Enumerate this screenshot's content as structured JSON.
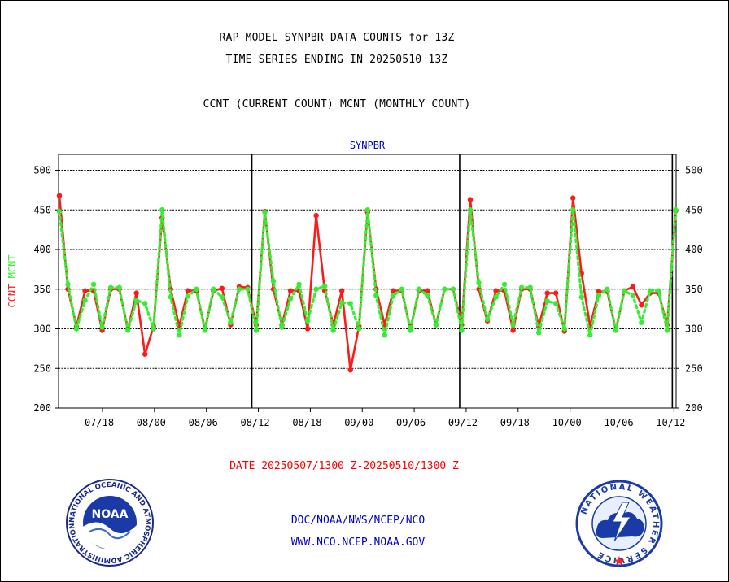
{
  "header": {
    "line1": "RAP MODEL SYNPBR DATA COUNTS for 13Z",
    "line2": "TIME SERIES ENDING IN 20250510 13Z",
    "line3": "CCNT (CURRENT COUNT) MCNT (MONTHLY COUNT)"
  },
  "footer": {
    "date_range": "DATE 20250507/1300 Z-20250510/1300 Z",
    "link1": "DOC/NOAA/NWS/NCEP/NCO",
    "link2": "WWW.NCO.NCEP.NOAA.GOV"
  },
  "logos": {
    "noaa_text": "NOAA",
    "noaa_ring": "NATIONAL OCEANIC AND ATMOSPHERIC ADMINISTRATION · U.S. DEPARTMENT OF COMMERCE ·",
    "nws_ring": "NATIONAL WEATHER SERVICE"
  },
  "colors": {
    "ccnt": "#ff1a1a",
    "mcnt": "#33ee33",
    "axis_label_blue": "#0000cc",
    "link_blue": "#0000cc"
  },
  "chart_data": {
    "type": "line",
    "title": "SYNPBR",
    "ylabel_parts": [
      {
        "text": "CCNT",
        "color": "#ff1a1a"
      },
      {
        "text": "MCNT",
        "color": "#33ee33"
      }
    ],
    "ylim": [
      200,
      520
    ],
    "yticks": [
      200,
      250,
      300,
      350,
      400,
      450,
      500
    ],
    "xtick_labels": [
      "07/18",
      "08/00",
      "08/06",
      "08/12",
      "08/18",
      "09/00",
      "09/06",
      "09/12",
      "09/18",
      "10/00",
      "10/06",
      "10/12"
    ],
    "x_start_hours_before_0718": 5,
    "x_end_hours_after_1012": 0.5,
    "day_separators": [
      "08/12",
      "09/12",
      "10/12"
    ],
    "grid": true,
    "series": [
      {
        "name": "CCNT",
        "values": [
          468,
          350,
          303,
          348,
          348,
          298,
          350,
          350,
          300,
          345,
          268,
          303,
          440,
          350,
          303,
          348,
          348,
          300,
          348,
          351,
          305,
          353,
          352,
          305,
          448,
          350,
          305,
          348,
          348,
          300,
          443,
          348,
          305,
          348,
          248,
          303,
          447,
          350,
          305,
          348,
          348,
          300,
          348,
          348,
          305,
          350,
          350,
          305,
          463,
          350,
          310,
          348,
          348,
          298,
          350,
          350,
          303,
          345,
          345,
          297,
          465,
          370,
          303,
          347,
          347,
          298,
          348,
          353,
          330,
          345,
          345,
          305,
          449
        ]
      },
      {
        "name": "MCNT",
        "values": [
          448,
          356,
          300,
          336,
          356,
          302,
          352,
          352,
          298,
          336,
          332,
          300,
          450,
          340,
          292,
          341,
          350,
          298,
          350,
          340,
          308,
          350,
          350,
          298,
          447,
          360,
          302,
          338,
          356,
          310,
          350,
          354,
          298,
          333,
          332,
          300,
          450,
          342,
          292,
          342,
          350,
          298,
          350,
          342,
          305,
          350,
          350,
          298,
          450,
          358,
          312,
          340,
          356,
          305,
          352,
          352,
          295,
          335,
          332,
          300,
          450,
          340,
          292,
          342,
          350,
          298,
          348,
          342,
          308,
          348,
          348,
          298,
          450
        ]
      }
    ]
  }
}
